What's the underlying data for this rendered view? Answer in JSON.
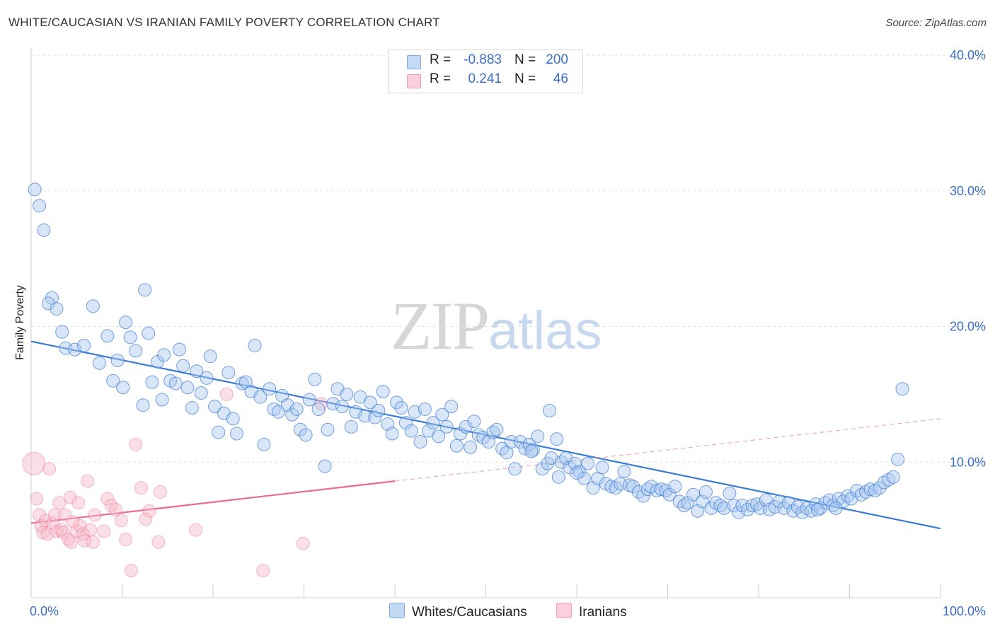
{
  "header": {
    "title": "WHITE/CAUCASIAN VS IRANIAN FAMILY POVERTY CORRELATION CHART",
    "source": "Source: ZipAtlas.com"
  },
  "watermark": {
    "zip": "ZIP",
    "atlas": "atlas"
  },
  "legend": {
    "rows": [
      {
        "r_label": "R =",
        "r_value": "-0.883",
        "n_label": "N =",
        "n_value": "200",
        "color": "#a9c8f0"
      },
      {
        "r_label": "R =",
        "r_value": "0.241",
        "n_label": "N =",
        "n_value": "46",
        "color": "#f6b8c8"
      }
    ]
  },
  "bottom_legend": {
    "white": "Whites/Caucasians",
    "iranian": "Iranians"
  },
  "chart_data": {
    "type": "scatter",
    "title": "WHITE/CAUCASIAN VS IRANIAN FAMILY POVERTY CORRELATION CHART",
    "xlabel": "",
    "ylabel": "Family Poverty",
    "xlim": [
      0,
      100
    ],
    "ylim": [
      0,
      40
    ],
    "y_ticks": [
      {
        "value": 10,
        "label": "10.0%"
      },
      {
        "value": 20,
        "label": "20.0%"
      },
      {
        "value": 30,
        "label": "30.0%"
      },
      {
        "value": 40,
        "label": "40.0%"
      }
    ],
    "x_tick_labels": {
      "min": "0.0%",
      "max": "100.0%"
    },
    "x_minor_ticks": [
      10,
      20,
      30,
      40,
      50,
      60,
      70,
      80,
      90,
      100
    ],
    "grid": true,
    "colors": {
      "white": "#3a7bd5",
      "white_fill": "#a9c8f0",
      "iranian": "#e86a94",
      "iranian_fill": "#f6b8c8"
    },
    "series": [
      {
        "name": "Whites/Caucasians",
        "r": -0.883,
        "n": 200,
        "trend": {
          "x0": 0,
          "y0": 18.9,
          "x1": 100,
          "y1": 5.1
        },
        "points": [
          [
            0.4,
            30.1
          ],
          [
            0.9,
            28.9
          ],
          [
            1.4,
            27.1
          ],
          [
            2.3,
            22.1
          ],
          [
            1.9,
            21.7
          ],
          [
            2.8,
            21.3
          ],
          [
            3.4,
            19.6
          ],
          [
            3.8,
            18.4
          ],
          [
            4.8,
            18.3
          ],
          [
            5.8,
            18.6
          ],
          [
            6.8,
            21.5
          ],
          [
            7.5,
            17.3
          ],
          [
            8.4,
            19.3
          ],
          [
            9.0,
            16.0
          ],
          [
            9.5,
            17.5
          ],
          [
            10.1,
            15.5
          ],
          [
            10.4,
            20.3
          ],
          [
            10.9,
            19.2
          ],
          [
            11.5,
            18.2
          ],
          [
            12.3,
            14.2
          ],
          [
            12.5,
            22.7
          ],
          [
            12.9,
            19.5
          ],
          [
            13.3,
            15.9
          ],
          [
            13.9,
            17.4
          ],
          [
            14.4,
            14.6
          ],
          [
            14.6,
            17.9
          ],
          [
            15.3,
            16.0
          ],
          [
            15.9,
            15.8
          ],
          [
            16.3,
            18.3
          ],
          [
            16.7,
            17.1
          ],
          [
            17.2,
            15.5
          ],
          [
            17.7,
            14.0
          ],
          [
            18.2,
            16.7
          ],
          [
            18.7,
            15.1
          ],
          [
            19.3,
            16.2
          ],
          [
            19.7,
            17.8
          ],
          [
            20.2,
            14.1
          ],
          [
            20.6,
            12.2
          ],
          [
            21.2,
            13.6
          ],
          [
            21.7,
            16.6
          ],
          [
            22.2,
            13.2
          ],
          [
            22.6,
            12.1
          ],
          [
            23.2,
            15.8
          ],
          [
            23.6,
            15.9
          ],
          [
            24.2,
            15.2
          ],
          [
            24.6,
            18.6
          ],
          [
            25.2,
            14.8
          ],
          [
            25.6,
            11.3
          ],
          [
            26.2,
            15.4
          ],
          [
            26.7,
            13.9
          ],
          [
            27.2,
            13.7
          ],
          [
            27.6,
            14.9
          ],
          [
            28.2,
            14.2
          ],
          [
            28.7,
            13.5
          ],
          [
            29.2,
            13.9
          ],
          [
            29.6,
            12.4
          ],
          [
            30.2,
            12.0
          ],
          [
            30.6,
            14.6
          ],
          [
            31.2,
            16.1
          ],
          [
            31.6,
            13.9
          ],
          [
            32.3,
            9.7
          ],
          [
            32.6,
            12.4
          ],
          [
            33.2,
            14.3
          ],
          [
            33.7,
            15.4
          ],
          [
            34.2,
            14.1
          ],
          [
            34.7,
            15.0
          ],
          [
            35.2,
            12.6
          ],
          [
            35.7,
            13.7
          ],
          [
            36.2,
            14.8
          ],
          [
            36.7,
            13.4
          ],
          [
            37.3,
            14.4
          ],
          [
            37.8,
            13.3
          ],
          [
            38.2,
            13.8
          ],
          [
            38.7,
            15.2
          ],
          [
            39.2,
            12.8
          ],
          [
            39.7,
            12.1
          ],
          [
            40.2,
            14.4
          ],
          [
            40.7,
            14.0
          ],
          [
            41.2,
            12.9
          ],
          [
            41.8,
            12.3
          ],
          [
            42.2,
            13.7
          ],
          [
            42.8,
            11.5
          ],
          [
            43.3,
            13.9
          ],
          [
            43.7,
            12.3
          ],
          [
            44.2,
            12.9
          ],
          [
            44.8,
            11.9
          ],
          [
            45.2,
            13.5
          ],
          [
            45.7,
            12.6
          ],
          [
            46.2,
            14.1
          ],
          [
            46.8,
            11.2
          ],
          [
            47.2,
            12.1
          ],
          [
            47.8,
            12.6
          ],
          [
            48.3,
            11.1
          ],
          [
            48.7,
            13.0
          ],
          [
            49.2,
            12.0
          ],
          [
            49.7,
            11.8
          ],
          [
            50.3,
            11.5
          ],
          [
            50.8,
            12.2
          ],
          [
            51.2,
            12.4
          ],
          [
            51.8,
            11.0
          ],
          [
            52.3,
            10.7
          ],
          [
            52.8,
            11.5
          ],
          [
            53.2,
            9.5
          ],
          [
            53.8,
            11.5
          ],
          [
            54.3,
            11.0
          ],
          [
            54.8,
            11.3
          ],
          [
            55.2,
            10.9
          ],
          [
            55.7,
            11.9
          ],
          [
            56.2,
            9.5
          ],
          [
            56.8,
            9.9
          ],
          [
            57.2,
            10.3
          ],
          [
            57.8,
            11.7
          ],
          [
            58.3,
            10.0
          ],
          [
            58.8,
            10.3
          ],
          [
            59.2,
            9.6
          ],
          [
            59.8,
            9.9
          ],
          [
            60.3,
            9.3
          ],
          [
            60.8,
            8.8
          ],
          [
            61.2,
            9.9
          ],
          [
            61.8,
            8.1
          ],
          [
            62.3,
            8.8
          ],
          [
            62.8,
            9.6
          ],
          [
            63.2,
            8.4
          ],
          [
            63.8,
            8.2
          ],
          [
            64.3,
            8.1
          ],
          [
            64.8,
            8.4
          ],
          [
            65.2,
            9.3
          ],
          [
            65.8,
            8.3
          ],
          [
            66.2,
            8.2
          ],
          [
            66.8,
            7.8
          ],
          [
            67.3,
            7.5
          ],
          [
            67.8,
            8.0
          ],
          [
            68.2,
            8.2
          ],
          [
            68.8,
            7.9
          ],
          [
            69.3,
            8.0
          ],
          [
            69.8,
            7.9
          ],
          [
            70.2,
            7.6
          ],
          [
            70.8,
            8.2
          ],
          [
            71.3,
            7.1
          ],
          [
            71.8,
            6.8
          ],
          [
            72.2,
            7.0
          ],
          [
            72.8,
            7.6
          ],
          [
            73.3,
            6.4
          ],
          [
            73.8,
            7.1
          ],
          [
            74.2,
            7.8
          ],
          [
            74.8,
            6.6
          ],
          [
            75.3,
            7.0
          ],
          [
            75.8,
            6.8
          ],
          [
            76.2,
            6.6
          ],
          [
            76.8,
            7.7
          ],
          [
            77.3,
            6.8
          ],
          [
            77.8,
            6.3
          ],
          [
            78.2,
            6.8
          ],
          [
            78.8,
            6.5
          ],
          [
            79.3,
            6.8
          ],
          [
            79.8,
            6.9
          ],
          [
            80.2,
            6.6
          ],
          [
            80.8,
            7.2
          ],
          [
            81.2,
            6.5
          ],
          [
            81.8,
            6.7
          ],
          [
            82.3,
            7.1
          ],
          [
            82.8,
            6.6
          ],
          [
            83.3,
            7.0
          ],
          [
            83.8,
            6.4
          ],
          [
            84.3,
            6.7
          ],
          [
            84.8,
            6.3
          ],
          [
            85.3,
            6.6
          ],
          [
            85.8,
            6.4
          ],
          [
            86.3,
            6.9
          ],
          [
            86.8,
            6.6
          ],
          [
            87.3,
            7.0
          ],
          [
            87.8,
            7.2
          ],
          [
            88.2,
            6.8
          ],
          [
            88.8,
            7.3
          ],
          [
            89.3,
            7.1
          ],
          [
            89.8,
            7.5
          ],
          [
            90.2,
            7.3
          ],
          [
            90.8,
            7.9
          ],
          [
            91.3,
            7.6
          ],
          [
            91.8,
            7.8
          ],
          [
            92.3,
            8.0
          ],
          [
            92.8,
            7.9
          ],
          [
            93.3,
            8.1
          ],
          [
            93.8,
            8.5
          ],
          [
            94.3,
            8.7
          ],
          [
            94.8,
            8.9
          ],
          [
            95.3,
            10.2
          ],
          [
            95.8,
            15.4
          ],
          [
            86.5,
            6.5
          ],
          [
            88.5,
            6.6
          ],
          [
            60.0,
            9.2
          ],
          [
            58.0,
            8.9
          ],
          [
            55.0,
            10.8
          ],
          [
            57.0,
            13.8
          ]
        ]
      },
      {
        "name": "Iranians",
        "r": 0.241,
        "n": 46,
        "trend": {
          "x0": 0,
          "y0": 5.5,
          "x1": 40,
          "y1": 8.6
        },
        "trend_ext": {
          "x0": 40,
          "y0": 8.6,
          "x1": 100,
          "y1": 13.2
        },
        "points": [
          [
            0.3,
            9.9
          ],
          [
            0.6,
            7.3
          ],
          [
            0.9,
            6.1
          ],
          [
            1.1,
            5.3
          ],
          [
            1.3,
            4.8
          ],
          [
            1.6,
            5.7
          ],
          [
            1.8,
            4.7
          ],
          [
            2.0,
            9.5
          ],
          [
            2.4,
            5.5
          ],
          [
            2.6,
            6.1
          ],
          [
            2.8,
            4.9
          ],
          [
            3.1,
            7.0
          ],
          [
            3.3,
            5.0
          ],
          [
            3.5,
            4.8
          ],
          [
            3.7,
            6.1
          ],
          [
            4.1,
            4.3
          ],
          [
            4.3,
            7.4
          ],
          [
            4.4,
            4.1
          ],
          [
            4.6,
            5.6
          ],
          [
            5.0,
            4.9
          ],
          [
            5.2,
            7.0
          ],
          [
            5.4,
            5.3
          ],
          [
            5.7,
            4.7
          ],
          [
            5.9,
            4.2
          ],
          [
            6.2,
            8.6
          ],
          [
            6.5,
            5.0
          ],
          [
            6.8,
            4.1
          ],
          [
            7.0,
            6.1
          ],
          [
            8.0,
            4.9
          ],
          [
            8.4,
            7.3
          ],
          [
            8.8,
            6.8
          ],
          [
            9.3,
            6.5
          ],
          [
            9.9,
            5.7
          ],
          [
            10.4,
            4.3
          ],
          [
            11.0,
            2.0
          ],
          [
            11.5,
            11.3
          ],
          [
            12.1,
            8.1
          ],
          [
            12.6,
            5.8
          ],
          [
            13.0,
            6.4
          ],
          [
            14.0,
            4.1
          ],
          [
            14.2,
            7.8
          ],
          [
            18.1,
            5.0
          ],
          [
            21.5,
            15.0
          ],
          [
            25.5,
            2.0
          ],
          [
            29.9,
            4.0
          ],
          [
            31.9,
            14.3
          ]
        ]
      }
    ]
  }
}
